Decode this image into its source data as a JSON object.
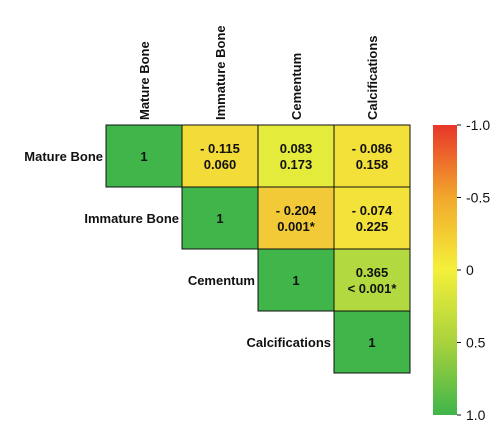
{
  "chart_data": {
    "type": "heatmap",
    "variables": [
      "Mature Bone",
      "Immature Bone",
      "Cementum",
      "Calcifications"
    ],
    "cells": [
      {
        "row": 0,
        "col": 0,
        "corr": 1,
        "lines": [
          "1"
        ]
      },
      {
        "row": 0,
        "col": 1,
        "corr": -0.115,
        "lines": [
          "- 0.115",
          "0.060"
        ]
      },
      {
        "row": 0,
        "col": 2,
        "corr": 0.083,
        "lines": [
          "0.083",
          "0.173"
        ]
      },
      {
        "row": 0,
        "col": 3,
        "corr": -0.086,
        "lines": [
          "- 0.086",
          "0.158"
        ]
      },
      {
        "row": 1,
        "col": 1,
        "corr": 1,
        "lines": [
          "1"
        ]
      },
      {
        "row": 1,
        "col": 2,
        "corr": -0.204,
        "lines": [
          "- 0.204",
          "0.001*"
        ]
      },
      {
        "row": 1,
        "col": 3,
        "corr": -0.074,
        "lines": [
          "- 0.074",
          "0.225"
        ]
      },
      {
        "row": 2,
        "col": 2,
        "corr": 1,
        "lines": [
          "1"
        ]
      },
      {
        "row": 2,
        "col": 3,
        "corr": 0.365,
        "lines": [
          "0.365",
          "< 0.001*"
        ]
      },
      {
        "row": 3,
        "col": 3,
        "corr": 1,
        "lines": [
          "1"
        ]
      }
    ],
    "colorbar": {
      "ticks": [
        "-1.0",
        "-0.5",
        "0",
        "0.5",
        "1.0"
      ],
      "range": [
        -1,
        1
      ],
      "colors": {
        "neg": "#e8362a",
        "mid": "#f4f03a",
        "pos": "#3fb54a"
      }
    }
  }
}
